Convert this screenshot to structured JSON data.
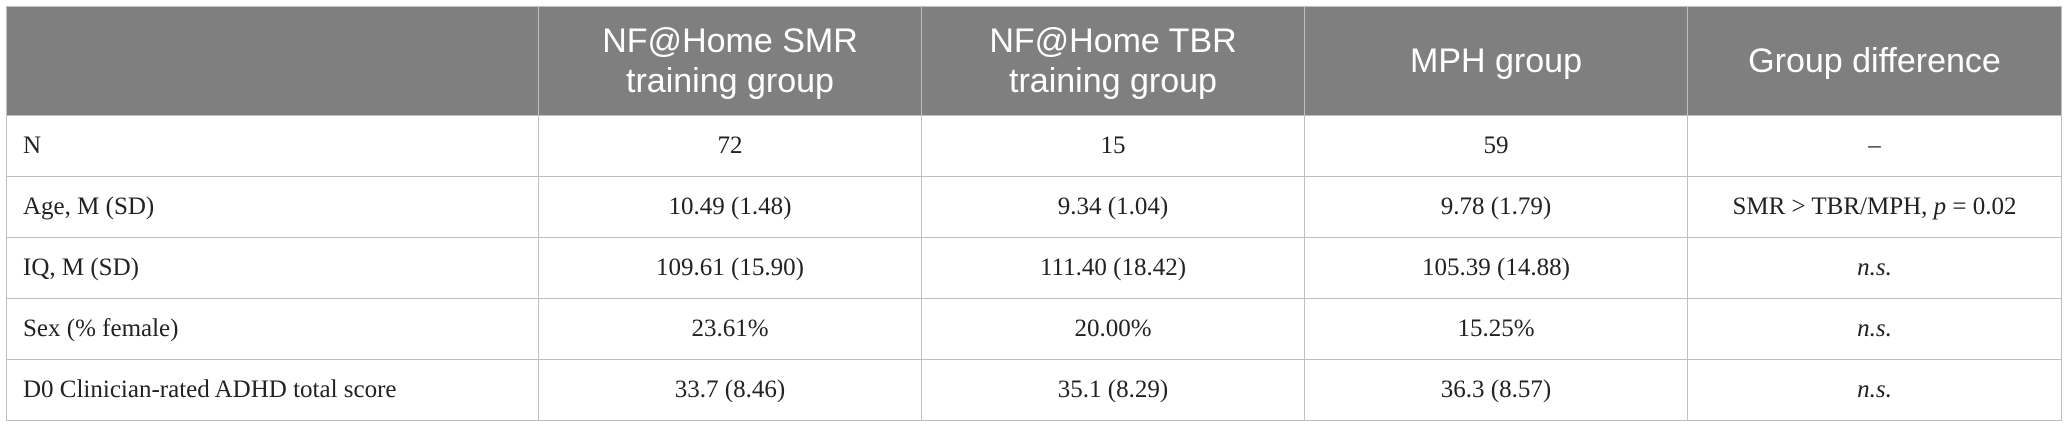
{
  "table": {
    "headers": [
      "",
      "NF@Home SMR training group",
      "NF@Home TBR training group",
      "MPH group",
      "Group difference"
    ],
    "rows": [
      {
        "label": "N",
        "smr": "72",
        "tbr": "15",
        "mph": "59",
        "diff_plain": "–"
      },
      {
        "label": "Age, M (SD)",
        "smr": "10.49 (1.48)",
        "tbr": "9.34 (1.04)",
        "mph": "9.78 (1.79)",
        "diff_prefix": "SMR > TBR/MPH, ",
        "diff_p": "p",
        "diff_suffix": " = 0.02"
      },
      {
        "label": "IQ, M (SD)",
        "smr": "109.61 (15.90)",
        "tbr": "111.40 (18.42)",
        "mph": "105.39 (14.88)",
        "diff_italic": "n.s."
      },
      {
        "label": "Sex (% female)",
        "smr": "23.61%",
        "tbr": "20.00%",
        "mph": "15.25%",
        "diff_italic": "n.s."
      },
      {
        "label": "D0 Clinician-rated ADHD total score",
        "smr": "33.7 (8.46)",
        "tbr": "35.1 (8.29)",
        "mph": "36.3 (8.57)",
        "diff_italic": "n.s."
      }
    ]
  }
}
